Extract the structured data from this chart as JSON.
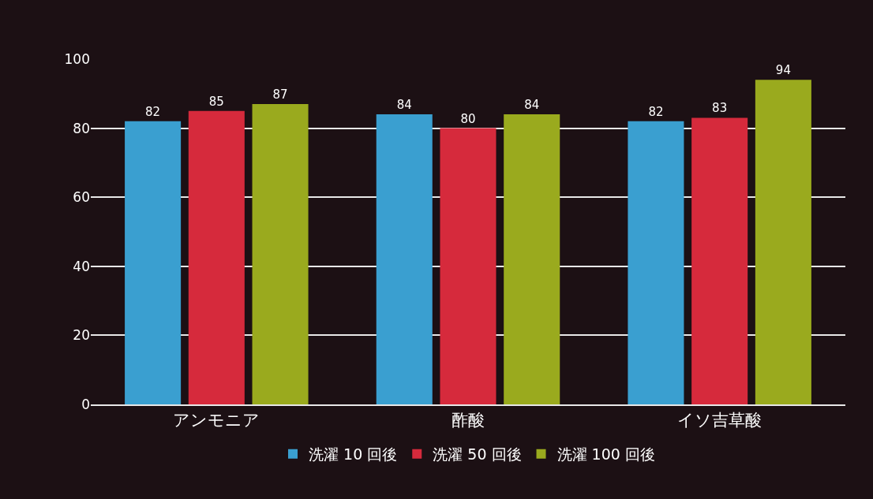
{
  "chart_data": {
    "type": "bar",
    "categories": [
      "アンモニア",
      "酢酸",
      "イソ吉草酸"
    ],
    "series": [
      {
        "name": "洗濯 10 回後",
        "color": "#3a9fd0",
        "values": [
          82,
          84,
          82
        ]
      },
      {
        "name": "洗濯 50 回後",
        "color": "#d62a3c",
        "values": [
          85,
          80,
          83
        ]
      },
      {
        "name": "洗濯 100 回後",
        "color": "#9aaa1e",
        "values": [
          87,
          84,
          94
        ]
      }
    ],
    "ylim": [
      0,
      100
    ],
    "yticks": [
      0,
      20,
      40,
      60,
      80,
      100
    ],
    "grid": "y",
    "legend": "bottom",
    "data_labels": true
  }
}
